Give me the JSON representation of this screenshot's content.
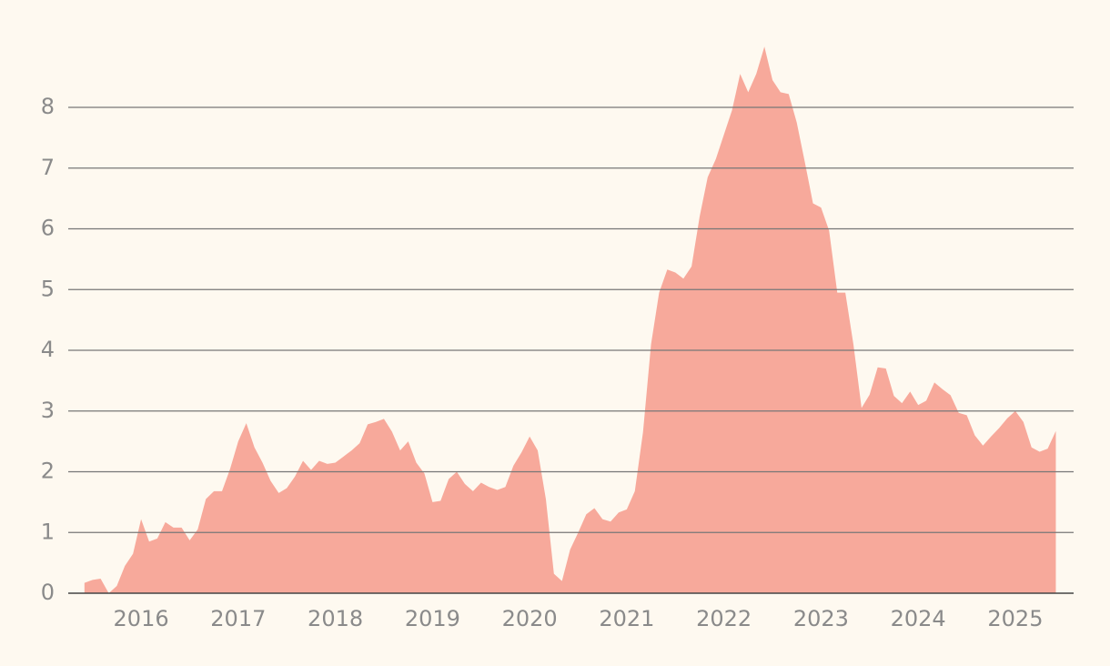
{
  "chart_data": {
    "type": "area",
    "x": [
      2015.417,
      2015.5,
      2015.583,
      2015.667,
      2015.75,
      2015.833,
      2015.917,
      2016,
      2016.083,
      2016.167,
      2016.25,
      2016.333,
      2016.417,
      2016.5,
      2016.583,
      2016.667,
      2016.75,
      2016.833,
      2016.917,
      2017,
      2017.083,
      2017.167,
      2017.25,
      2017.333,
      2017.417,
      2017.5,
      2017.583,
      2017.667,
      2017.75,
      2017.833,
      2017.917,
      2018,
      2018.083,
      2018.167,
      2018.25,
      2018.333,
      2018.417,
      2018.5,
      2018.583,
      2018.667,
      2018.75,
      2018.833,
      2018.917,
      2019,
      2019.083,
      2019.167,
      2019.25,
      2019.333,
      2019.417,
      2019.5,
      2019.583,
      2019.667,
      2019.75,
      2019.833,
      2019.917,
      2020,
      2020.083,
      2020.167,
      2020.25,
      2020.333,
      2020.417,
      2020.5,
      2020.583,
      2020.667,
      2020.75,
      2020.833,
      2020.917,
      2021,
      2021.083,
      2021.167,
      2021.25,
      2021.333,
      2021.417,
      2021.5,
      2021.583,
      2021.667,
      2021.75,
      2021.833,
      2021.917,
      2022,
      2022.083,
      2022.167,
      2022.25,
      2022.333,
      2022.417,
      2022.5,
      2022.583,
      2022.667,
      2022.75,
      2022.833,
      2022.917,
      2023,
      2023.083,
      2023.167,
      2023.25,
      2023.333,
      2023.417,
      2023.5,
      2023.583,
      2023.667,
      2023.75,
      2023.833,
      2023.917,
      2024,
      2024.083,
      2024.167,
      2024.25,
      2024.333,
      2024.417,
      2024.5,
      2024.583,
      2024.667,
      2024.75,
      2024.833,
      2024.917,
      2025,
      2025.083,
      2025.167,
      2025.25,
      2025.333,
      2025.417
    ],
    "values": [
      0.17,
      0.22,
      0.24,
      0.0,
      0.12,
      0.45,
      0.65,
      1.22,
      0.85,
      0.9,
      1.17,
      1.08,
      1.08,
      0.87,
      1.05,
      1.55,
      1.68,
      1.68,
      2.05,
      2.5,
      2.8,
      2.4,
      2.15,
      1.85,
      1.65,
      1.73,
      1.92,
      2.18,
      2.03,
      2.18,
      2.13,
      2.15,
      2.25,
      2.35,
      2.47,
      2.78,
      2.82,
      2.87,
      2.66,
      2.35,
      2.5,
      2.15,
      1.97,
      1.5,
      1.52,
      1.88,
      2.0,
      1.8,
      1.68,
      1.82,
      1.75,
      1.7,
      1.75,
      2.1,
      2.32,
      2.58,
      2.35,
      1.55,
      0.32,
      0.2,
      0.72,
      1.0,
      1.3,
      1.4,
      1.22,
      1.18,
      1.33,
      1.38,
      1.68,
      2.65,
      4.1,
      4.95,
      5.33,
      5.28,
      5.18,
      5.38,
      6.2,
      6.85,
      7.15,
      7.55,
      7.95,
      8.55,
      8.25,
      8.55,
      9.0,
      8.45,
      8.25,
      8.22,
      7.75,
      7.1,
      6.42,
      6.35,
      5.97,
      4.95,
      4.95,
      4.1,
      3.05,
      3.27,
      3.72,
      3.7,
      3.25,
      3.13,
      3.32,
      3.1,
      3.17,
      3.47,
      3.36,
      3.26,
      2.97,
      2.93,
      2.6,
      2.43,
      2.58,
      2.72,
      2.88,
      3.0,
      2.82,
      2.4,
      2.33,
      2.38,
      2.67
    ],
    "color": "#f7a99b",
    "xlim": [
      2015.25,
      2025.6
    ],
    "xticks": [
      2016,
      2017,
      2018,
      2019,
      2020,
      2021,
      2022,
      2023,
      2024,
      2025
    ],
    "ylim": [
      0,
      9.25
    ],
    "yticks": [
      0,
      1,
      2,
      3,
      4,
      5,
      6,
      7,
      8
    ],
    "grid": true
  }
}
